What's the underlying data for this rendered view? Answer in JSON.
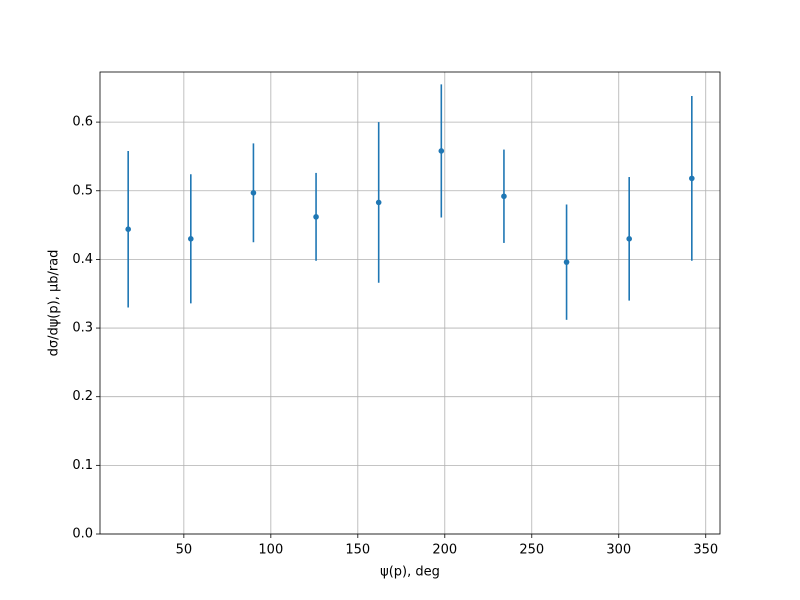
{
  "chart_data": {
    "type": "errorbar",
    "x_label": "ψ(p), deg",
    "y_label": "dσ/dψ(p), μb/rad",
    "x": [
      18,
      54,
      90,
      126,
      162,
      198,
      234,
      270,
      306,
      342
    ],
    "values": [
      0.444,
      0.43,
      0.497,
      0.462,
      0.483,
      0.558,
      0.492,
      0.396,
      0.43,
      0.518
    ],
    "errors": [
      0.114,
      0.094,
      0.072,
      0.064,
      0.117,
      0.097,
      0.068,
      0.084,
      0.09,
      0.12
    ],
    "color": "#1f77b4",
    "xlim": [
      1.8,
      358.2
    ],
    "ylim": [
      0,
      0.673
    ],
    "xticks": [
      50,
      100,
      150,
      200,
      250,
      300,
      350
    ],
    "yticks": [
      {
        "value": 0,
        "label": "0.0"
      },
      0.1,
      0.2,
      0.3,
      0.4,
      0.5,
      0.6
    ],
    "grid": true
  }
}
